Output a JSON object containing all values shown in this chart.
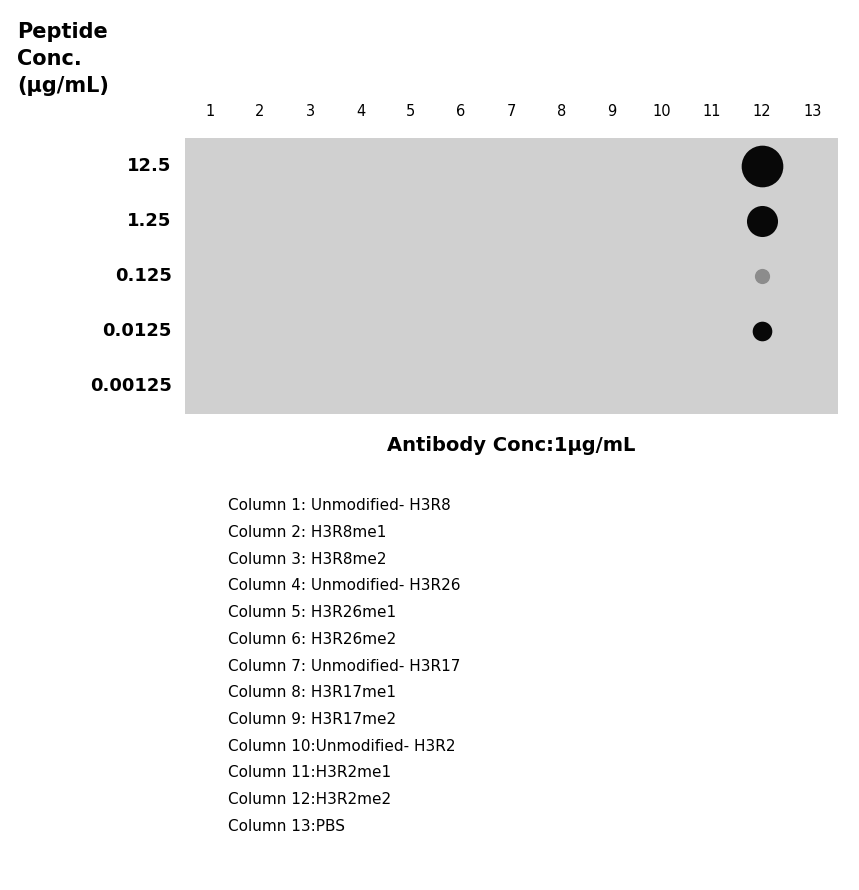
{
  "antibody_label": "Antibody Conc:1µg/mL",
  "row_labels": [
    "12.5",
    "1.25",
    "0.125",
    "0.0125",
    "0.00125"
  ],
  "col_labels": [
    "1",
    "2",
    "3",
    "4",
    "5",
    "6",
    "7",
    "8",
    "9",
    "10",
    "11",
    "12",
    "13"
  ],
  "num_rows": 5,
  "num_cols": 13,
  "bg_color": "#d0d0d0",
  "dot_color": "#080808",
  "dot_positions": [
    {
      "col": 12,
      "row": 0,
      "size": 900,
      "alpha": 1.0,
      "color": "#080808"
    },
    {
      "col": 12,
      "row": 1,
      "size": 500,
      "alpha": 1.0,
      "color": "#080808"
    },
    {
      "col": 12,
      "row": 2,
      "size": 120,
      "alpha": 0.55,
      "color": "#555555"
    },
    {
      "col": 12,
      "row": 3,
      "size": 200,
      "alpha": 1.0,
      "color": "#080808"
    }
  ],
  "legend_lines": [
    "Column 1: Unmodified- H3R8",
    "Column 2: H3R8me1",
    "Column 3: H3R8me2",
    "Column 4: Unmodified- H3R26",
    "Column 5: H3R26me1",
    "Column 6: H3R26me2",
    "Column 7: Unmodified- H3R17",
    "Column 8: H3R17me1",
    "Column 9: H3R17me2",
    "Column 10:Unmodified- H3R2",
    "Column 11:H3R2me1",
    "Column 12:H3R2me2",
    "Column 13:PBS"
  ],
  "title_line1": "Peptide",
  "title_line2": "Conc.",
  "title_line3": "(µg/mL)"
}
